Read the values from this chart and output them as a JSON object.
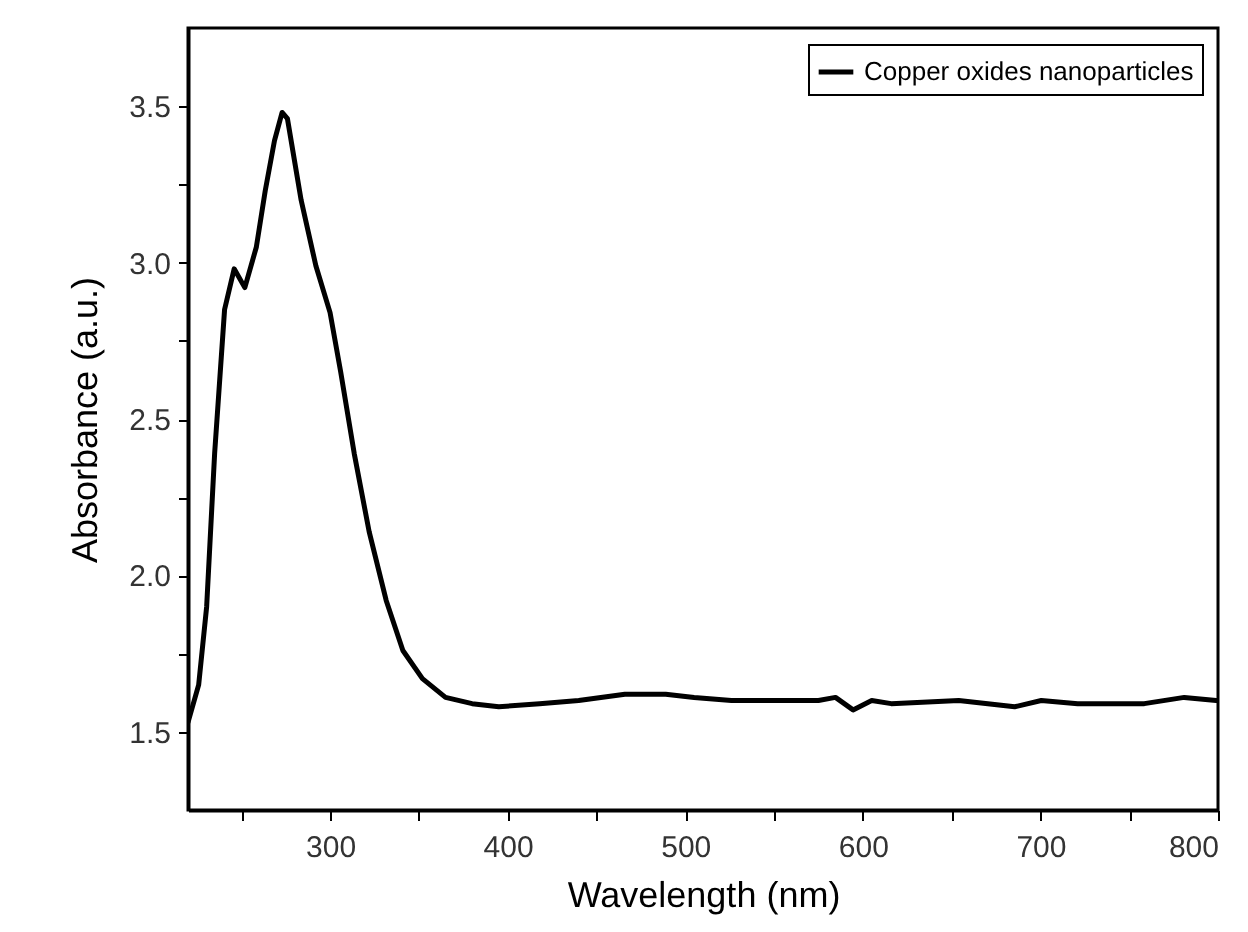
{
  "chart_data": {
    "type": "line",
    "xlabel": "Wavelength (nm)",
    "ylabel": "Absorbance (a.u.)",
    "xlim": [
      220,
      800
    ],
    "ylim": [
      1.25,
      3.75
    ],
    "xticks": [
      {
        "value": 250,
        "label": null
      },
      300,
      {
        "value": 350,
        "label": null
      },
      400,
      {
        "value": 450,
        "label": null
      },
      500,
      {
        "value": 550,
        "label": null
      },
      600,
      {
        "value": 650,
        "label": null
      },
      700,
      {
        "value": 750,
        "label": null
      },
      800
    ],
    "yticks": [
      1.5,
      {
        "value": 1.75,
        "label": null
      },
      "2.0",
      {
        "value": 2.25,
        "label": null
      },
      2.5,
      {
        "value": 2.75,
        "label": null
      },
      {
        "value": 3.0,
        "label": "3.0"
      },
      {
        "value": 3.25,
        "label": null
      },
      3.5
    ],
    "grid": false,
    "legend": "top right",
    "marker": "none",
    "line_style": "solid",
    "series": [
      {
        "name": "Copper oxides nanoparticles",
        "color": "#000000",
        "x": [
          220,
          226,
          230.5,
          235,
          240.6,
          246,
          252,
          258.5,
          263.5,
          268.7,
          273,
          276,
          283.7,
          292,
          300,
          306,
          313.6,
          322,
          331.6,
          341,
          352,
          365,
          380,
          395,
          418,
          440,
          466,
          489,
          505,
          526,
          545,
          575,
          584.6,
          594.5,
          605,
          616,
          654,
          685.5,
          700.5,
          721,
          758.5,
          781,
          799
        ],
        "values": [
          1.53,
          1.65,
          1.9,
          2.39,
          2.85,
          2.98,
          2.92,
          3.05,
          3.23,
          3.39,
          3.48,
          3.46,
          3.2,
          2.99,
          2.84,
          2.65,
          2.39,
          2.14,
          1.92,
          1.76,
          1.67,
          1.61,
          1.59,
          1.58,
          1.59,
          1.6,
          1.62,
          1.62,
          1.61,
          1.6,
          1.6,
          1.6,
          1.61,
          1.57,
          1.6,
          1.59,
          1.6,
          1.58,
          1.6,
          1.59,
          1.59,
          1.61,
          1.6
        ]
      }
    ]
  }
}
